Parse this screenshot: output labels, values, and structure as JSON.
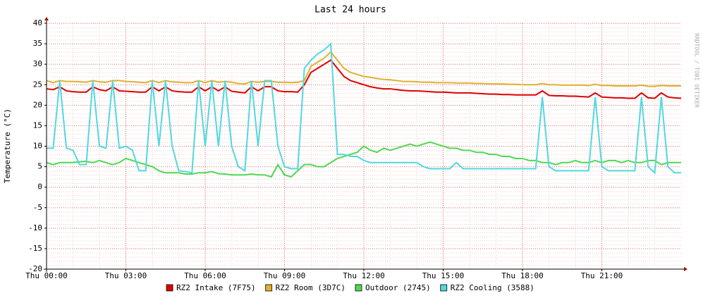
{
  "chart_data": {
    "type": "line",
    "title": "Last 24 hours",
    "ylabel": "Temperature (°C)",
    "watermark": "RRDTOOL / TOBI OETIKER",
    "x": [
      0,
      0.25,
      0.5,
      0.75,
      1,
      1.25,
      1.5,
      1.75,
      2,
      2.25,
      2.5,
      2.75,
      3,
      3.25,
      3.5,
      3.75,
      4,
      4.25,
      4.5,
      4.75,
      5,
      5.25,
      5.5,
      5.75,
      6,
      6.25,
      6.5,
      6.75,
      7,
      7.25,
      7.5,
      7.75,
      8,
      8.25,
      8.5,
      8.75,
      9,
      9.25,
      9.5,
      9.75,
      10,
      10.25,
      10.5,
      10.75,
      11,
      11.25,
      11.5,
      11.75,
      12,
      12.25,
      12.5,
      12.75,
      13,
      13.25,
      13.5,
      13.75,
      14,
      14.25,
      14.5,
      14.75,
      15,
      15.25,
      15.5,
      15.75,
      16,
      16.25,
      16.5,
      16.75,
      17,
      17.25,
      17.5,
      17.75,
      18,
      18.25,
      18.5,
      18.75,
      19,
      19.25,
      19.5,
      19.75,
      20,
      20.25,
      20.5,
      20.75,
      21,
      21.25,
      21.5,
      21.75,
      22,
      22.25,
      22.5,
      22.75,
      23,
      23.25,
      23.5,
      23.75,
      24
    ],
    "series": [
      {
        "name": "RZ2 Intake (7F75)",
        "color": "#e00000",
        "values": [
          24,
          23.8,
          24.5,
          23.5,
          23.3,
          23.2,
          23.2,
          24.5,
          23.8,
          23.5,
          24.5,
          23.5,
          23.4,
          23.3,
          23.2,
          23.2,
          24.5,
          23.5,
          24.5,
          23.5,
          23.3,
          23.2,
          23.2,
          24.5,
          23.5,
          24.5,
          23.5,
          24.5,
          23.4,
          23.2,
          23,
          24.5,
          23.5,
          24.5,
          24.5,
          23.5,
          23.3,
          23.3,
          23.2,
          25,
          28,
          29,
          30,
          31,
          29,
          27,
          26,
          25.5,
          25,
          24.5,
          24.2,
          24,
          24,
          23.8,
          23.6,
          23.5,
          23.5,
          23.4,
          23.3,
          23.2,
          23.2,
          23.1,
          23,
          23,
          23,
          22.9,
          22.8,
          22.7,
          22.7,
          22.6,
          22.6,
          22.5,
          22.5,
          22.5,
          22.5,
          23.5,
          22.4,
          22.3,
          22.3,
          22.2,
          22.2,
          22.1,
          22,
          23,
          22,
          21.9,
          21.8,
          21.8,
          21.7,
          21.7,
          23,
          21.8,
          21.7,
          23,
          22,
          21.8,
          21.7
        ]
      },
      {
        "name": "RZ2 Room (3D7C)",
        "color": "#e0b030",
        "values": [
          26,
          25.5,
          26,
          25.8,
          25.8,
          25.7,
          25.6,
          26,
          25.7,
          25.6,
          26,
          26,
          25.8,
          25.7,
          25.6,
          25.5,
          26,
          25.5,
          26,
          25.7,
          25.6,
          25.5,
          25.5,
          26,
          25.5,
          26,
          25.6,
          25.8,
          25.6,
          25.3,
          25.2,
          25.8,
          25.6,
          25.8,
          25.8,
          25.6,
          25.6,
          25.5,
          25.6,
          26,
          29.5,
          30.5,
          31.5,
          33,
          31,
          29,
          28,
          27.5,
          27,
          26.8,
          26.5,
          26.3,
          26.2,
          26,
          25.8,
          25.8,
          25.7,
          25.6,
          25.6,
          25.5,
          25.5,
          25.5,
          25.4,
          25.4,
          25.4,
          25.3,
          25.3,
          25.2,
          25.2,
          25.2,
          25.1,
          25.1,
          25,
          25,
          25,
          25.3,
          25,
          25,
          24.9,
          24.9,
          24.9,
          24.9,
          24.8,
          25.1,
          24.8,
          24.8,
          24.7,
          24.7,
          24.7,
          24.7,
          24.9,
          24.6,
          24.6,
          24.8,
          24.7,
          24.7,
          24.7
        ]
      },
      {
        "name": "Outdoor (2745)",
        "color": "#50d850",
        "values": [
          6,
          5.5,
          6,
          6,
          6,
          6.2,
          6.3,
          6,
          6.5,
          6,
          5.5,
          6,
          7,
          6.5,
          6,
          5.5,
          5,
          4,
          3.5,
          3.5,
          3.5,
          3.2,
          3.2,
          3.5,
          3.5,
          3.8,
          3.3,
          3.2,
          3,
          3,
          3,
          3.2,
          3,
          3,
          2.5,
          5.5,
          3,
          2.5,
          4,
          5.5,
          5.5,
          5,
          5,
          6,
          7,
          7.5,
          8,
          8.5,
          10,
          9,
          8.5,
          9.5,
          9,
          9.5,
          10,
          10.5,
          10,
          10.5,
          11,
          10.5,
          10,
          9.5,
          9.5,
          9,
          9,
          8.5,
          8.5,
          8,
          8,
          7.5,
          7.5,
          7,
          7,
          6.5,
          6.5,
          6,
          6,
          5.5,
          6,
          6,
          6.5,
          6,
          6,
          6.5,
          6,
          6.5,
          6.5,
          6,
          6.5,
          6,
          6,
          6.5,
          6.5,
          5.5,
          6,
          6,
          6
        ]
      },
      {
        "name": "RZ2 Cooling (3588)",
        "color": "#50d8e0",
        "values": [
          9.5,
          9.5,
          26,
          9.5,
          9,
          5.5,
          5.5,
          26,
          10,
          9.5,
          26,
          9.5,
          10,
          9,
          4,
          4,
          26,
          10,
          26,
          10,
          4,
          3.8,
          3.5,
          26,
          10,
          26,
          10,
          26,
          10,
          5,
          4,
          26,
          10,
          26,
          26,
          10,
          5,
          4.5,
          4.5,
          29,
          31,
          32.5,
          33.5,
          35,
          8,
          8,
          7.5,
          7.5,
          6.5,
          6,
          6,
          6,
          6,
          6,
          6,
          6,
          6,
          5,
          4.5,
          4.5,
          4.5,
          4.5,
          6,
          4.5,
          4.5,
          4.5,
          4.5,
          4.5,
          4.5,
          4.5,
          4.5,
          4.5,
          4.5,
          4.5,
          4.5,
          22,
          5,
          4,
          4,
          4,
          4,
          4,
          4,
          22,
          5,
          4,
          4,
          4,
          4,
          4,
          22,
          5,
          3.5,
          22,
          5,
          3.5,
          3.5
        ]
      }
    ],
    "xlim": [
      0,
      24
    ],
    "xticks": [
      {
        "value": 0,
        "label": "Thu 00:00"
      },
      {
        "value": 3,
        "label": "Thu 03:00"
      },
      {
        "value": 6,
        "label": "Thu 06:00"
      },
      {
        "value": 9,
        "label": "Thu 09:00"
      },
      {
        "value": 12,
        "label": "Thu 12:00"
      },
      {
        "value": 15,
        "label": "Thu 15:00"
      },
      {
        "value": 18,
        "label": "Thu 18:00"
      },
      {
        "value": 21,
        "label": "Thu 21:00"
      }
    ],
    "ylim": [
      -20,
      40
    ],
    "yticks": [
      -20,
      -15,
      -10,
      -5,
      0,
      5,
      10,
      15,
      20,
      25,
      30,
      35,
      40
    ],
    "grid": true,
    "legend": "bottom"
  }
}
